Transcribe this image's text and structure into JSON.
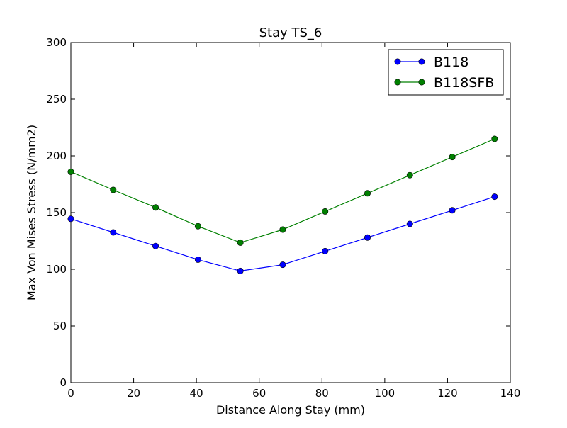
{
  "chart_data": {
    "type": "line",
    "title": "Stay TS_6",
    "xlabel": "Distance Along Stay (mm)",
    "ylabel": "Max Von Mises Stress (N/mm2)",
    "xlim": [
      0,
      140
    ],
    "ylim": [
      0,
      300
    ],
    "xticks": [
      0,
      20,
      40,
      60,
      80,
      100,
      120,
      140
    ],
    "yticks": [
      0,
      50,
      100,
      150,
      200,
      250,
      300
    ],
    "grid": false,
    "legend_position": "top-right",
    "x": [
      0,
      13.5,
      27,
      40.5,
      54,
      67.5,
      81,
      94.5,
      108,
      121.5,
      135
    ],
    "series": [
      {
        "name": "B118",
        "color": "#0000ff",
        "marker": "circle",
        "values": [
          144.5,
          132.5,
          120.5,
          108.5,
          98.5,
          104,
          116,
          128,
          140,
          152,
          164
        ]
      },
      {
        "name": "B118SFB",
        "color": "#008000",
        "marker": "circle",
        "values": [
          186,
          170,
          154.5,
          138,
          123.5,
          135,
          151,
          167,
          183,
          199,
          215
        ]
      }
    ]
  }
}
